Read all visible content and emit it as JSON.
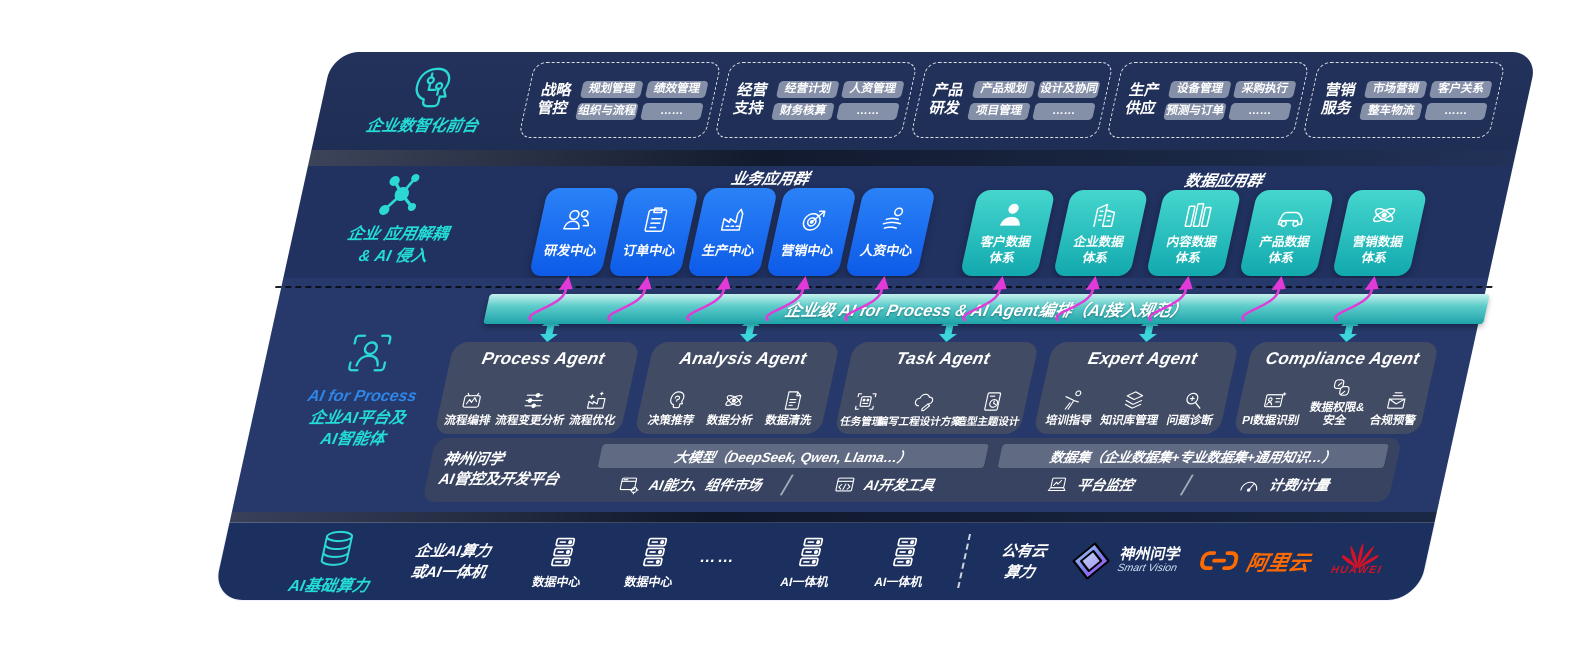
{
  "colors": {
    "accent_teal": "#2BD8D4",
    "accent_blue": "#1B6DF3",
    "box_teal": "#2BC4C4",
    "band_navy": "#21325E",
    "magenta_arrow": "#E23AD8",
    "teal_arrow": "#3BD6DA",
    "alicloud_orange": "#FF6A00",
    "huawei_red": "#D51226"
  },
  "front": {
    "label": "企业数智化前台",
    "icon": "brain-circuit-icon",
    "groups": [
      {
        "name_lines": [
          "战略",
          "管控"
        ],
        "chips": [
          "规划管理",
          "绩效管理",
          "组织与流程",
          "……"
        ]
      },
      {
        "name_lines": [
          "经营",
          "支持"
        ],
        "chips": [
          "经营计划",
          "人资管理",
          "财务核算",
          "……"
        ]
      },
      {
        "name_lines": [
          "产品",
          "研发"
        ],
        "chips": [
          "产品规划",
          "设计及协同",
          "项目管理",
          "……"
        ]
      },
      {
        "name_lines": [
          "生产",
          "供应"
        ],
        "chips": [
          "设备管理",
          "采购执行",
          "预测与订单",
          "……"
        ]
      },
      {
        "name_lines": [
          "营销",
          "服务"
        ],
        "chips": [
          "市场营销",
          "客户关系",
          "整车物流",
          "……"
        ]
      }
    ]
  },
  "apps": {
    "label_lines": [
      "企业 应用解耦",
      "& AI 侵入"
    ],
    "icon": "molecule-icon",
    "business_group": {
      "title": "业务应用群",
      "boxes": [
        {
          "label": "研发中心",
          "icon": "team-icon"
        },
        {
          "label": "订单中心",
          "icon": "clipboard-icon"
        },
        {
          "label": "生产中心",
          "icon": "factory-icon"
        },
        {
          "label": "营销中心",
          "icon": "target-arrow-icon"
        },
        {
          "label": "人资中心",
          "icon": "person-waves-icon"
        }
      ]
    },
    "data_group": {
      "title": "数据应用群",
      "boxes": [
        {
          "label_lines": [
            "客户数据",
            "体系"
          ],
          "icon": "person-icon"
        },
        {
          "label_lines": [
            "企业数据",
            "体系"
          ],
          "icon": "building-icon"
        },
        {
          "label_lines": [
            "内容数据",
            "体系"
          ],
          "icon": "books-icon"
        },
        {
          "label_lines": [
            "产品数据",
            "体系"
          ],
          "icon": "car-icon"
        },
        {
          "label_lines": [
            "营销数据",
            "体系"
          ],
          "icon": "atom-icon"
        }
      ]
    }
  },
  "ai_band": {
    "label": "企业级 AI for Process & AI Agent编排（AI接入规范）"
  },
  "platform": {
    "label_lines": [
      "AI for Process",
      "企业AI平台及",
      "AI智能体"
    ],
    "icon": "focus-person-icon",
    "agents": [
      {
        "title": "Process Agent",
        "items": [
          {
            "label": "流程编排",
            "icon": "flow-wave-icon"
          },
          {
            "label": "流程变更分析",
            "icon": "sliders-icon"
          },
          {
            "label": "流程优化",
            "icon": "optimize-icon"
          }
        ]
      },
      {
        "title": "Analysis Agent",
        "items": [
          {
            "label": "决策推荐",
            "icon": "insight-icon"
          },
          {
            "label": "数据分析",
            "icon": "atom-icon"
          },
          {
            "label": "数据清洗",
            "icon": "doc-clean-icon"
          }
        ]
      },
      {
        "title": "Task Agent",
        "items": [
          {
            "label": "任务管理",
            "icon": "task-grid-icon"
          },
          {
            "label": "编写工程设计方案",
            "icon": "cloud-pen-icon"
          },
          {
            "label": "造型主题设计",
            "icon": "design-check-icon"
          }
        ]
      },
      {
        "title": "Expert Agent",
        "items": [
          {
            "label": "培训指导",
            "icon": "training-icon"
          },
          {
            "label": "知识库管理",
            "icon": "layers-icon"
          },
          {
            "label": "问题诊断",
            "icon": "diagnose-icon"
          }
        ]
      },
      {
        "title": "Compliance Agent",
        "items": [
          {
            "label": "PI数据识别",
            "icon": "idcard-icon"
          },
          {
            "label": "数据权限& 安全",
            "icon": "permission-icon",
            "wrap": true
          },
          {
            "label": "合规预警",
            "icon": "alert-mail-icon"
          }
        ]
      }
    ],
    "devplatform": {
      "label_lines": [
        "神州问学",
        "AI管控及开发平台"
      ],
      "left": {
        "bar": "大模型（DeepSeek, Qwen, Llama…）",
        "cells": [
          {
            "label": "AI能力、组件市场",
            "icon": "window-gear-icon"
          },
          {
            "label": "AI开发工具",
            "icon": "window-code-icon"
          }
        ]
      },
      "right": {
        "bar": "数据集（企业数据集+专业数据集+通用知识…）",
        "cells": [
          {
            "label": "平台监控",
            "icon": "laptop-chart-icon"
          },
          {
            "label": "计费/计量",
            "icon": "gauge-icon"
          }
        ]
      }
    }
  },
  "infra": {
    "label": "AI基础算力",
    "icon": "database-icon",
    "compute_lines": [
      "企业AI算力",
      "或AI一体机"
    ],
    "servers": [
      {
        "label": "数据中心",
        "icon": "server-icon"
      },
      {
        "label": "数据中心",
        "icon": "server-icon"
      }
    ],
    "dots": "…… ",
    "appliances": [
      {
        "label": "AI一体机",
        "icon": "server-icon"
      },
      {
        "label": "AI一体机",
        "icon": "server-icon"
      }
    ],
    "cloud_lines": [
      "公有云",
      "算力"
    ],
    "logos": {
      "smartvision": {
        "title": "神州问学",
        "subtitle": "Smart Vision",
        "icon": "smartvision-icon"
      },
      "alicloud": {
        "text": "阿里云",
        "icon": "alicloud-icon"
      },
      "huawei": {
        "text": "HUAWEI",
        "icon": "huawei-icon"
      }
    }
  }
}
